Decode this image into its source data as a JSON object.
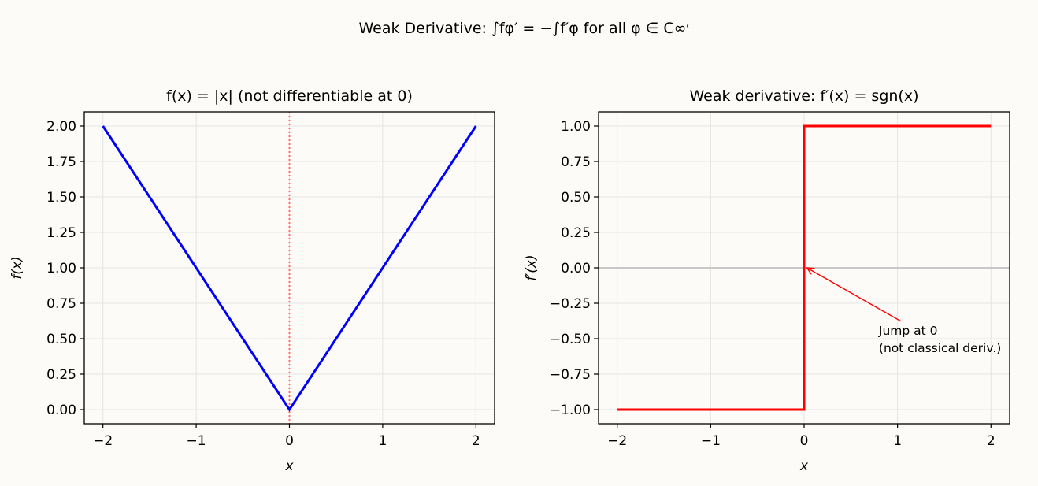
{
  "suptitle": "Weak Derivative: ∫fφ′ = −∫f′φ for all φ ∈ C∞ᶜ",
  "colors": {
    "background": "#fcfbf7",
    "left_series": "#0000ff",
    "right_series": "#ff0000",
    "left_vline": "#ff6f6f",
    "zero_line": "#c8c8c8",
    "grid": "#e4e4e4"
  },
  "chart_data": [
    {
      "type": "line",
      "title": "f(x) = |x| (not differentiable at 0)",
      "xlabel": "x",
      "ylabel": "f(x)",
      "xlim": [
        -2.2,
        2.2
      ],
      "ylim": [
        -0.1,
        2.1
      ],
      "xticks": [
        -2,
        -1,
        0,
        1,
        2
      ],
      "xtick_labels": [
        "−2",
        "−1",
        "0",
        "1",
        "2"
      ],
      "yticks": [
        0,
        0.25,
        0.5,
        0.75,
        1.0,
        1.25,
        1.5,
        1.75,
        2.0
      ],
      "ytick_labels": [
        "0.00",
        "0.25",
        "0.50",
        "0.75",
        "1.00",
        "1.25",
        "1.50",
        "1.75",
        "2.00"
      ],
      "grid": true,
      "vline": {
        "x": 0,
        "style": "dotted"
      },
      "series": [
        {
          "x": [
            -2,
            0,
            2
          ],
          "y": [
            2,
            0,
            2
          ],
          "color": "#0000ff"
        }
      ]
    },
    {
      "type": "line",
      "title": "Weak derivative: f′(x) = sgn(x)",
      "xlabel": "x",
      "ylabel": "f′(x)",
      "xlim": [
        -2.2,
        2.2
      ],
      "ylim": [
        -1.1,
        1.1
      ],
      "xticks": [
        -2,
        -1,
        0,
        1,
        2
      ],
      "xtick_labels": [
        "−2",
        "−1",
        "0",
        "1",
        "2"
      ],
      "yticks": [
        -1.0,
        -0.75,
        -0.5,
        -0.25,
        0,
        0.25,
        0.5,
        0.75,
        1.0
      ],
      "ytick_labels": [
        "−1.00",
        "−0.75",
        "−0.50",
        "−0.25",
        "0.00",
        "0.25",
        "0.50",
        "0.75",
        "1.00"
      ],
      "grid": true,
      "hline": {
        "y": 0
      },
      "series": [
        {
          "x": [
            -2,
            0,
            0,
            2
          ],
          "y": [
            -1,
            -1,
            1,
            1
          ],
          "color": "#ff0000"
        }
      ],
      "annotation": {
        "lines": [
          "Jump at 0",
          "(not classical deriv.)"
        ],
        "text_at": [
          0.8,
          -0.26
        ],
        "arrow_to": [
          0.03,
          0
        ]
      }
    }
  ]
}
